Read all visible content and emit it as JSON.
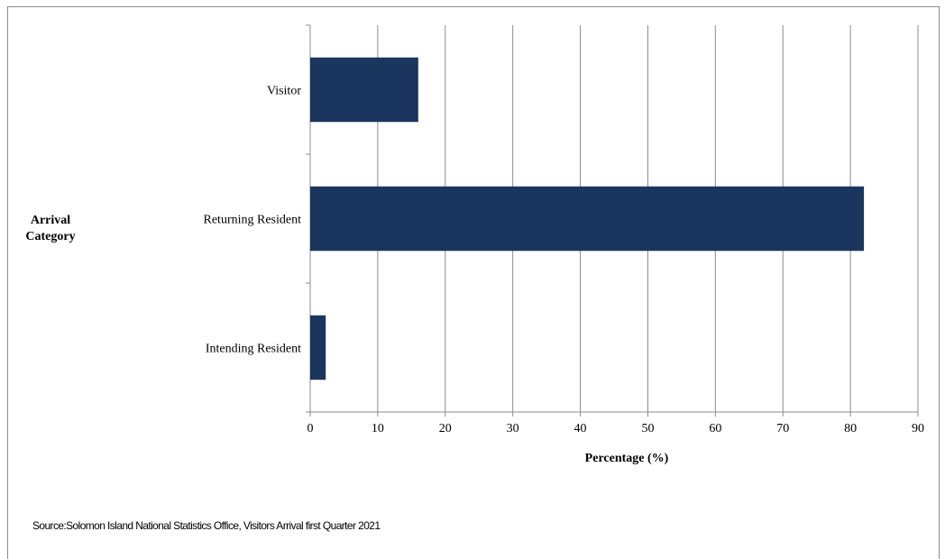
{
  "chart_data": {
    "type": "bar",
    "orientation": "horizontal",
    "categories": [
      "Visitor",
      "Returning Resident",
      "Intending Resident"
    ],
    "values": [
      16,
      82,
      2.3
    ],
    "xlabel": "Percentage (%)",
    "ylabel": "Arrival Category",
    "xlim": [
      0,
      90
    ],
    "xticks": [
      "0",
      "10",
      "20",
      "30",
      "40",
      "50",
      "60",
      "70",
      "80",
      "90"
    ],
    "grid": true,
    "bar_color": "#1a355e",
    "grid_color": "#8c8c8c"
  },
  "source": "Source:Solomon Island National Statistics Office, Visitors Arrival first Quarter 2021"
}
